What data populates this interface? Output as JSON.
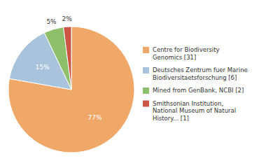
{
  "chart_data": {
    "type": "pie",
    "categories": [
      "Centre for Biodiversity\nGenomics [31]",
      "Deutsches Zentrum fuer Marine\nBiodiversitaetsforschung [6]",
      "Mined from GenBank, NCBI [2]",
      "Smithsonian Institution,\nNational Museum of Natural\nHistory... [1]"
    ],
    "values": [
      77,
      15,
      5,
      2
    ],
    "value_labels": [
      "77%",
      "15%",
      "5%",
      "2%"
    ],
    "colors": [
      "#f0a868",
      "#a8c4dc",
      "#8ec06c",
      "#cc5544"
    ],
    "data_labels": true,
    "legend": "right"
  }
}
